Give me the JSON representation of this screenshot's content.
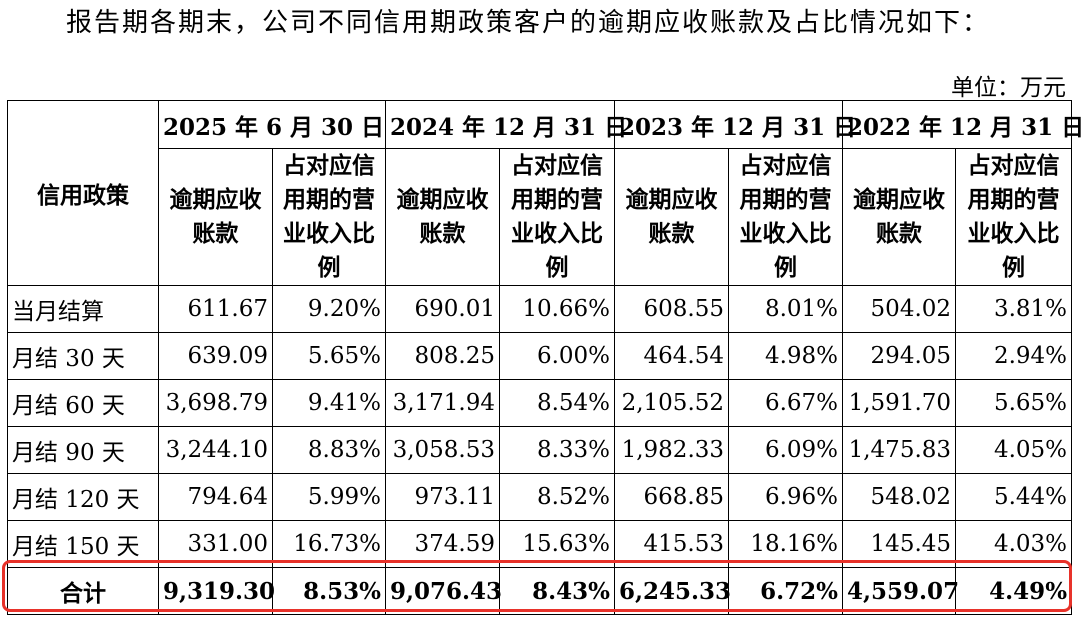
{
  "intro_text": "报告期各期末，公司不同信用期政策客户的逾期应收账款及占比情况如下：",
  "unit_text": "单位：万元",
  "table": {
    "policy_header": "信用政策",
    "periods": [
      "2025 年 6 月 30 日",
      "2024 年 12 月 31 日",
      "2023 年 12 月 31 日",
      "2022 年 12 月 31 日"
    ],
    "sub_headers": {
      "overdue": "逾期应收账款",
      "ratio": "占对应信用期的营业收入比例"
    },
    "rows": [
      {
        "policy": "当月结算",
        "cells": [
          "611.67",
          "9.20%",
          "690.01",
          "10.66%",
          "608.55",
          "8.01%",
          "504.02",
          "3.81%"
        ]
      },
      {
        "policy": "月结 30 天",
        "cells": [
          "639.09",
          "5.65%",
          "808.25",
          "6.00%",
          "464.54",
          "4.98%",
          "294.05",
          "2.94%"
        ]
      },
      {
        "policy": "月结 60 天",
        "cells": [
          "3,698.79",
          "9.41%",
          "3,171.94",
          "8.54%",
          "2,105.52",
          "6.67%",
          "1,591.70",
          "5.65%"
        ]
      },
      {
        "policy": "月结 90 天",
        "cells": [
          "3,244.10",
          "8.83%",
          "3,058.53",
          "8.33%",
          "1,982.33",
          "6.09%",
          "1,475.83",
          "4.05%"
        ]
      },
      {
        "policy": "月结 120 天",
        "cells": [
          "794.64",
          "5.99%",
          "973.11",
          "8.52%",
          "668.85",
          "6.96%",
          "548.02",
          "5.44%"
        ]
      },
      {
        "policy": "月结 150 天",
        "cells": [
          "331.00",
          "16.73%",
          "374.59",
          "15.63%",
          "415.53",
          "18.16%",
          "145.45",
          "4.03%"
        ]
      }
    ],
    "total": {
      "policy": "合计",
      "cells": [
        "9,319.30",
        "8.53%",
        "9,076.43",
        "8.43%",
        "6,245.33",
        "6.72%",
        "4,559.07",
        "4.49%"
      ]
    }
  },
  "colors": {
    "highlight_border": "#e8322a"
  }
}
